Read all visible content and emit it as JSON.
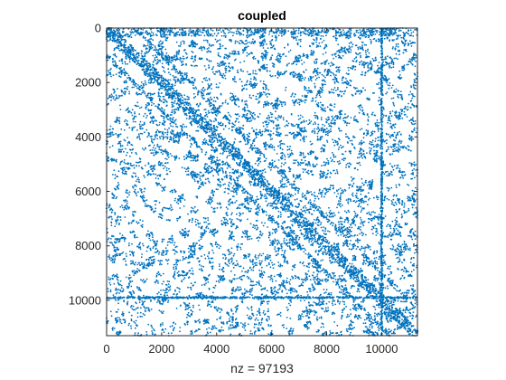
{
  "chart_data": {
    "type": "scatter",
    "kind": "sparsity-pattern",
    "title": "coupled",
    "xlabel": "nz = 97193",
    "ylabel": "",
    "nz": 97193,
    "matrix_size": [
      11300,
      11300
    ],
    "xlim": [
      0,
      11300
    ],
    "ylim": [
      11300,
      0
    ],
    "y_axis_reversed": true,
    "xticks": [
      0,
      2000,
      4000,
      6000,
      8000,
      10000
    ],
    "xtick_labels": [
      "0",
      "2000",
      "4000",
      "6000",
      "8000",
      "10000"
    ],
    "yticks": [
      0,
      2000,
      4000,
      6000,
      8000,
      10000
    ],
    "ytick_labels": [
      "0",
      "2000",
      "4000",
      "6000",
      "8000",
      "10000"
    ],
    "grid": false,
    "legend": "none",
    "marker_color": "#0072BD",
    "axis_color": "#262626",
    "structure": {
      "main_diagonal": true,
      "off_diagonal_band_offset": 1000,
      "dense_row_index": 9900,
      "dense_col_index": 10000,
      "top_dense_rows": [
        0,
        300
      ]
    }
  }
}
